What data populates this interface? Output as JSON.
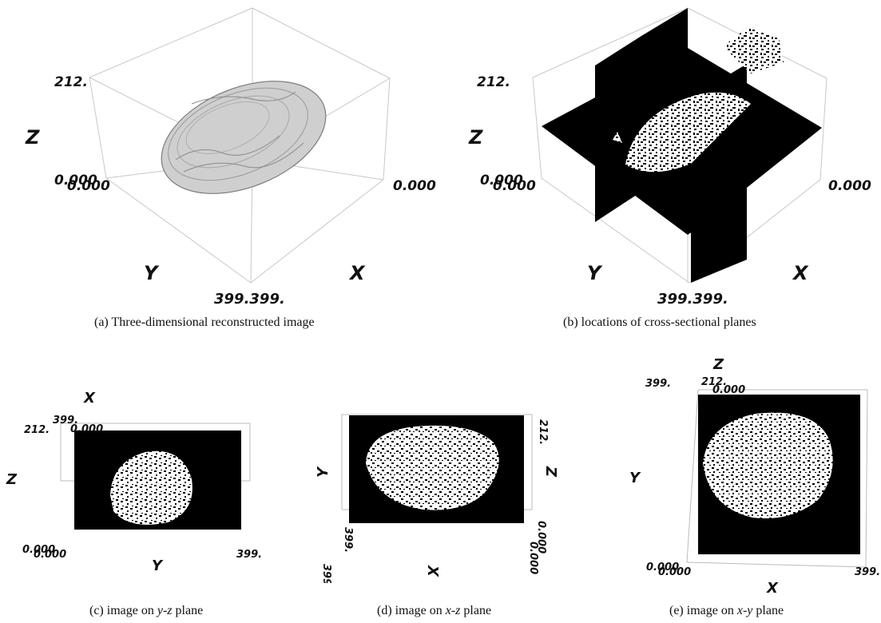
{
  "figure": {
    "a": {
      "caption": "(a)   Three-dimensional reconstructed image",
      "axis": {
        "z": "Z",
        "y": "Y",
        "x": "X"
      },
      "ticks": {
        "z_max": "212.",
        "origin_a": "0.000",
        "origin_b": "0.000",
        "x_origin": "0.000",
        "corner": "399.399."
      }
    },
    "b": {
      "caption": "(b) locations of cross-sectional planes",
      "axis": {
        "z": "Z",
        "y": "Y",
        "x": "X"
      },
      "ticks": {
        "z_max": "212.",
        "origin_a": "0.000",
        "origin_b": "0.000",
        "x_origin": "0.000",
        "corner": "399.399."
      }
    },
    "c": {
      "caption_pre": "(c) image on ",
      "caption_plane": "y-z",
      "caption_post": " plane",
      "axis": {
        "top": "X",
        "left": "Z",
        "bottom": "Y"
      },
      "ticks": {
        "z_max": "212.",
        "x_max": "399.",
        "x_min": "0.000",
        "origin_a": "0.000",
        "origin_b": "0.000",
        "y_max": "399."
      }
    },
    "d": {
      "caption_pre": "(d) image on ",
      "caption_plane": "x-z",
      "caption_post": " plane",
      "axis": {
        "left": "Y",
        "right": "Z",
        "bottom": "X"
      },
      "ticks": {
        "z_max": "212.",
        "y_max": "399.",
        "y_min": "399.",
        "origin_a": "0.000",
        "origin_b": "0.000"
      }
    },
    "e": {
      "caption_pre": "(e) image on ",
      "caption_plane": "x-y",
      "caption_post": " plane",
      "axis": {
        "top": "Z",
        "left": "Y",
        "bottom": "X"
      },
      "ticks": {
        "y_max": "399.",
        "z_max": "212.",
        "z_min": "0.000",
        "origin_a": "0.000",
        "origin_b": "0.000",
        "x_max": "399."
      }
    }
  }
}
